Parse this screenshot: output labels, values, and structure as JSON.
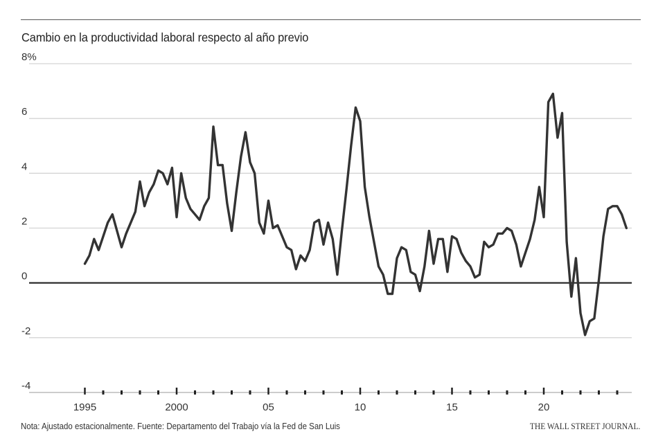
{
  "chart_data": {
    "type": "line",
    "title": "Cambio en la productividad laboral respecto al año previo",
    "xlabel": "",
    "ylabel": "",
    "ylim": [
      -4,
      8
    ],
    "xlim": [
      1994,
      2025
    ],
    "yticks": [
      {
        "value": 8,
        "label": "8%"
      },
      {
        "value": 6,
        "label": "6"
      },
      {
        "value": 4,
        "label": "4"
      },
      {
        "value": 2,
        "label": "2"
      },
      {
        "value": 0,
        "label": "0"
      },
      {
        "value": -2,
        "label": "-2"
      },
      {
        "value": -4,
        "label": "-4"
      }
    ],
    "xticks": [
      {
        "value": 1995,
        "label": "1995"
      },
      {
        "value": 2000,
        "label": "2000"
      },
      {
        "value": 2005,
        "label": "05"
      },
      {
        "value": 2010,
        "label": "10"
      },
      {
        "value": 2015,
        "label": "15"
      },
      {
        "value": 2020,
        "label": "20"
      }
    ],
    "grid": true,
    "line_color": "#333333",
    "series": [
      {
        "values": [
          [
            1995.0,
            0.7
          ],
          [
            1995.25,
            1.0
          ],
          [
            1995.5,
            1.6
          ],
          [
            1995.75,
            1.2
          ],
          [
            1996.0,
            1.7
          ],
          [
            1996.25,
            2.2
          ],
          [
            1996.5,
            2.5
          ],
          [
            1996.75,
            1.9
          ],
          [
            1997.0,
            1.3
          ],
          [
            1997.25,
            1.8
          ],
          [
            1997.5,
            2.2
          ],
          [
            1997.75,
            2.6
          ],
          [
            1998.0,
            3.7
          ],
          [
            1998.25,
            2.8
          ],
          [
            1998.5,
            3.3
          ],
          [
            1998.75,
            3.6
          ],
          [
            1999.0,
            4.1
          ],
          [
            1999.25,
            4.0
          ],
          [
            1999.5,
            3.6
          ],
          [
            1999.75,
            4.2
          ],
          [
            2000.0,
            2.4
          ],
          [
            2000.25,
            4.0
          ],
          [
            2000.5,
            3.1
          ],
          [
            2000.75,
            2.7
          ],
          [
            2001.0,
            2.5
          ],
          [
            2001.25,
            2.3
          ],
          [
            2001.5,
            2.8
          ],
          [
            2001.75,
            3.1
          ],
          [
            2002.0,
            5.7
          ],
          [
            2002.25,
            4.3
          ],
          [
            2002.5,
            4.3
          ],
          [
            2002.75,
            2.9
          ],
          [
            2003.0,
            1.9
          ],
          [
            2003.25,
            3.3
          ],
          [
            2003.5,
            4.6
          ],
          [
            2003.75,
            5.5
          ],
          [
            2004.0,
            4.4
          ],
          [
            2004.25,
            4.0
          ],
          [
            2004.5,
            2.2
          ],
          [
            2004.75,
            1.8
          ],
          [
            2005.0,
            3.0
          ],
          [
            2005.25,
            2.0
          ],
          [
            2005.5,
            2.1
          ],
          [
            2005.75,
            1.7
          ],
          [
            2006.0,
            1.3
          ],
          [
            2006.25,
            1.2
          ],
          [
            2006.5,
            0.5
          ],
          [
            2006.75,
            1.0
          ],
          [
            2007.0,
            0.8
          ],
          [
            2007.25,
            1.2
          ],
          [
            2007.5,
            2.2
          ],
          [
            2007.75,
            2.3
          ],
          [
            2008.0,
            1.4
          ],
          [
            2008.25,
            2.2
          ],
          [
            2008.5,
            1.6
          ],
          [
            2008.75,
            0.3
          ],
          [
            2009.0,
            1.9
          ],
          [
            2009.25,
            3.4
          ],
          [
            2009.5,
            5.0
          ],
          [
            2009.75,
            6.4
          ],
          [
            2010.0,
            5.9
          ],
          [
            2010.25,
            3.5
          ],
          [
            2010.5,
            2.4
          ],
          [
            2010.75,
            1.5
          ],
          [
            2011.0,
            0.6
          ],
          [
            2011.25,
            0.3
          ],
          [
            2011.5,
            -0.4
          ],
          [
            2011.75,
            -0.4
          ],
          [
            2012.0,
            0.9
          ],
          [
            2012.25,
            1.3
          ],
          [
            2012.5,
            1.2
          ],
          [
            2012.75,
            0.4
          ],
          [
            2013.0,
            0.3
          ],
          [
            2013.25,
            -0.3
          ],
          [
            2013.5,
            0.6
          ],
          [
            2013.75,
            1.9
          ],
          [
            2014.0,
            0.7
          ],
          [
            2014.25,
            1.6
          ],
          [
            2014.5,
            1.6
          ],
          [
            2014.75,
            0.4
          ],
          [
            2015.0,
            1.7
          ],
          [
            2015.25,
            1.6
          ],
          [
            2015.5,
            1.1
          ],
          [
            2015.75,
            0.8
          ],
          [
            2016.0,
            0.6
          ],
          [
            2016.25,
            0.2
          ],
          [
            2016.5,
            0.3
          ],
          [
            2016.75,
            1.5
          ],
          [
            2017.0,
            1.3
          ],
          [
            2017.25,
            1.4
          ],
          [
            2017.5,
            1.8
          ],
          [
            2017.75,
            1.8
          ],
          [
            2018.0,
            2.0
          ],
          [
            2018.25,
            1.9
          ],
          [
            2018.5,
            1.4
          ],
          [
            2018.75,
            0.6
          ],
          [
            2019.0,
            1.1
          ],
          [
            2019.25,
            1.6
          ],
          [
            2019.5,
            2.3
          ],
          [
            2019.75,
            3.5
          ],
          [
            2020.0,
            2.4
          ],
          [
            2020.25,
            6.6
          ],
          [
            2020.5,
            6.9
          ],
          [
            2020.75,
            5.3
          ],
          [
            2021.0,
            6.2
          ],
          [
            2021.25,
            1.5
          ],
          [
            2021.5,
            -0.5
          ],
          [
            2021.75,
            0.9
          ],
          [
            2022.0,
            -1.1
          ],
          [
            2022.25,
            -1.9
          ],
          [
            2022.5,
            -1.4
          ],
          [
            2022.75,
            -1.3
          ],
          [
            2023.0,
            0.1
          ],
          [
            2023.25,
            1.7
          ],
          [
            2023.5,
            2.7
          ],
          [
            2023.75,
            2.8
          ],
          [
            2024.0,
            2.8
          ],
          [
            2024.25,
            2.5
          ],
          [
            2024.5,
            2.0
          ]
        ]
      }
    ]
  },
  "footnote": "Nota: Ajustado estacionalmente.  Fuente: Departamento del Trabajo vía la Fed de San Luis",
  "credit": "THE WALL STREET JOURNAL."
}
